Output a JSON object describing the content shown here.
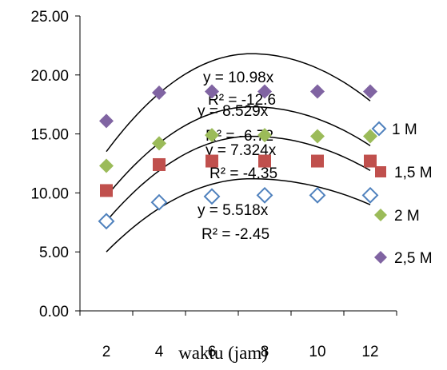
{
  "chart_data": {
    "type": "scatter",
    "title": "",
    "xlabel": "waktu (jam)",
    "ylabel": "",
    "xlim": [
      1,
      13
    ],
    "ylim": [
      0,
      25
    ],
    "x_ticks": [
      "2",
      "4",
      "6",
      "8",
      "10",
      "12"
    ],
    "y_ticks": [
      "0.00",
      "5.00",
      "10.00",
      "15.00",
      "20.00",
      "25.00"
    ],
    "grid": false,
    "legend_position": "right",
    "series": [
      {
        "name": "1 M",
        "marker": "diamond-open",
        "color": "#4F81BD",
        "x": [
          2,
          4,
          6,
          8,
          10,
          12
        ],
        "y": [
          7.6,
          9.2,
          9.7,
          9.8,
          9.8,
          9.8
        ],
        "trendline": {
          "equation": "y = 5.518x",
          "r2": "R² = -2.45",
          "peak": 11.2
        }
      },
      {
        "name": "1,5 M",
        "marker": "square",
        "color": "#C0504D",
        "x": [
          2,
          4,
          6,
          8,
          10,
          12
        ],
        "y": [
          10.2,
          12.4,
          12.7,
          12.7,
          12.7,
          12.7
        ],
        "trendline": {
          "equation": "y = 7.324x",
          "r2": "R² = -4.35",
          "peak": 14.8
        }
      },
      {
        "name": "2 M",
        "marker": "diamond",
        "color": "#9BBB59",
        "x": [
          2,
          4,
          6,
          8,
          10,
          12
        ],
        "y": [
          12.3,
          14.2,
          14.9,
          14.9,
          14.8,
          14.8
        ],
        "trendline": {
          "equation": "y = 8.529x",
          "r2": "R² = -6.72",
          "peak": 17.3
        }
      },
      {
        "name": "2,5 M",
        "marker": "diamond",
        "color": "#8064A2",
        "x": [
          2,
          4,
          6,
          8,
          10,
          12
        ],
        "y": [
          16.1,
          18.5,
          18.6,
          18.6,
          18.6,
          18.6
        ],
        "trendline": {
          "equation": "y = 10.98x",
          "r2": "R² = -12.6",
          "peak": 21.8
        }
      }
    ]
  }
}
